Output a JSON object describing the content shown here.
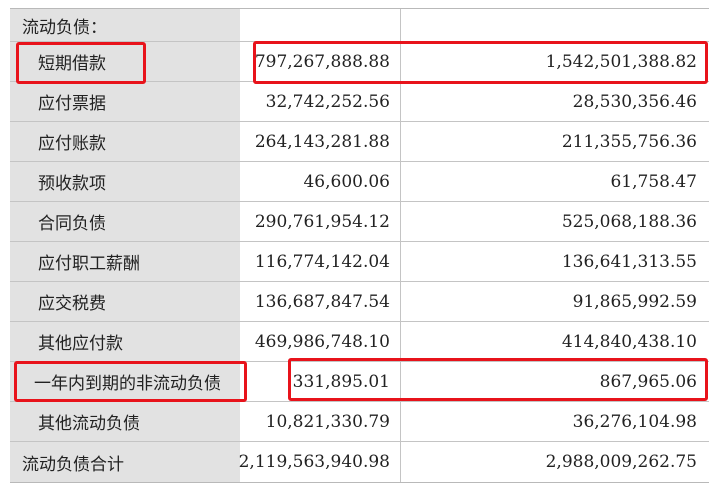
{
  "section_header": "流动负债：",
  "rows": [
    {
      "label": "短期借款",
      "v1": "797,267,888.88",
      "v2": "1,542,501,388.82"
    },
    {
      "label": "应付票据",
      "v1": "32,742,252.56",
      "v2": "28,530,356.46"
    },
    {
      "label": "应付账款",
      "v1": "264,143,281.88",
      "v2": "211,355,756.36"
    },
    {
      "label": "预收款项",
      "v1": "46,600.06",
      "v2": "61,758.47"
    },
    {
      "label": "合同负债",
      "v1": "290,761,954.12",
      "v2": "525,068,188.36"
    },
    {
      "label": "应付职工薪酬",
      "v1": "116,774,142.04",
      "v2": "136,641,313.55"
    },
    {
      "label": "应交税费",
      "v1": "136,687,847.54",
      "v2": "91,865,992.59"
    },
    {
      "label": "其他应付款",
      "v1": "469,986,748.10",
      "v2": "414,840,438.10"
    },
    {
      "label": "一年内到期的非流动负债",
      "v1": "331,895.01",
      "v2": "867,965.06"
    },
    {
      "label": "其他流动负债",
      "v1": "10,821,330.79",
      "v2": "36,276,104.98"
    }
  ],
  "total": {
    "label": "流动负债合计",
    "v1": "2,119,563,940.98",
    "v2": "2,988,009,262.75"
  },
  "colors": {
    "highlight": "#e8131b",
    "label_bg": "#e2e2e2",
    "grid": "#c4c4c4"
  }
}
